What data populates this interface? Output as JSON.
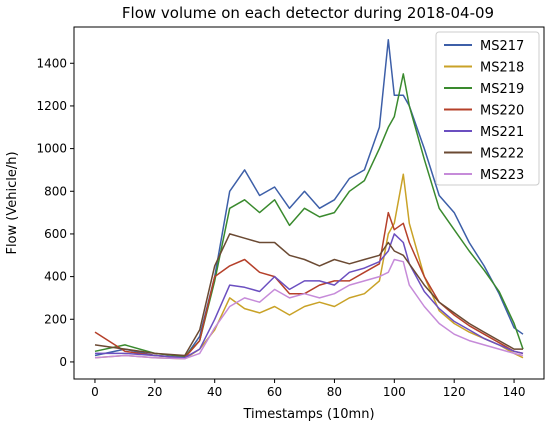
{
  "chart_data": {
    "type": "line",
    "title": "Flow volume on each detector during 2018-04-09",
    "xlabel": "Timestamps (10mn)",
    "ylabel": "Flow (Vehicle/h)",
    "xlim": [
      -7,
      150
    ],
    "ylim": [
      -80,
      1570
    ],
    "x_ticks": [
      0,
      20,
      40,
      60,
      80,
      100,
      120,
      140
    ],
    "y_ticks": [
      0,
      200,
      400,
      600,
      800,
      1000,
      1200,
      1400
    ],
    "grid": false,
    "legend_position": "top-right",
    "x": [
      0,
      10,
      20,
      30,
      35,
      40,
      45,
      50,
      55,
      60,
      65,
      70,
      75,
      80,
      85,
      90,
      95,
      98,
      100,
      103,
      105,
      110,
      115,
      120,
      125,
      130,
      135,
      140,
      143
    ],
    "series": [
      {
        "name": "MS217",
        "color": "#3d5fa8",
        "values": [
          30,
          60,
          30,
          20,
          120,
          400,
          800,
          900,
          780,
          820,
          720,
          800,
          720,
          760,
          860,
          900,
          1100,
          1510,
          1250,
          1250,
          1200,
          1000,
          780,
          700,
          560,
          450,
          320,
          160,
          130
        ]
      },
      {
        "name": "MS218",
        "color": "#c9a227",
        "values": [
          20,
          30,
          20,
          15,
          60,
          150,
          300,
          250,
          230,
          260,
          220,
          260,
          280,
          260,
          300,
          320,
          380,
          600,
          650,
          880,
          650,
          400,
          240,
          180,
          140,
          110,
          80,
          40,
          20
        ]
      },
      {
        "name": "MS219",
        "color": "#3a8a2e",
        "values": [
          50,
          80,
          40,
          25,
          100,
          380,
          720,
          760,
          700,
          760,
          640,
          720,
          680,
          700,
          800,
          850,
          1000,
          1100,
          1150,
          1350,
          1200,
          950,
          720,
          620,
          520,
          430,
          330,
          180,
          60
        ]
      },
      {
        "name": "MS220",
        "color": "#b5402a",
        "values": [
          140,
          50,
          30,
          20,
          100,
          400,
          450,
          480,
          420,
          400,
          320,
          320,
          360,
          380,
          380,
          420,
          460,
          700,
          620,
          650,
          560,
          400,
          280,
          220,
          170,
          130,
          90,
          50,
          40
        ]
      },
      {
        "name": "MS221",
        "color": "#6b4fc0",
        "values": [
          40,
          40,
          30,
          20,
          60,
          200,
          360,
          350,
          330,
          400,
          340,
          380,
          380,
          360,
          420,
          440,
          470,
          520,
          600,
          560,
          460,
          330,
          250,
          190,
          150,
          110,
          80,
          50,
          40
        ]
      },
      {
        "name": "MS222",
        "color": "#6b4a33",
        "values": [
          80,
          60,
          40,
          30,
          150,
          450,
          600,
          580,
          560,
          560,
          500,
          480,
          450,
          480,
          460,
          480,
          500,
          560,
          520,
          500,
          460,
          360,
          280,
          230,
          180,
          140,
          100,
          60,
          60
        ]
      },
      {
        "name": "MS223",
        "color": "#c68bd9",
        "values": [
          20,
          30,
          20,
          15,
          40,
          160,
          260,
          300,
          280,
          340,
          300,
          320,
          300,
          320,
          360,
          380,
          400,
          420,
          480,
          470,
          360,
          260,
          180,
          130,
          100,
          80,
          60,
          40,
          30
        ]
      }
    ]
  }
}
